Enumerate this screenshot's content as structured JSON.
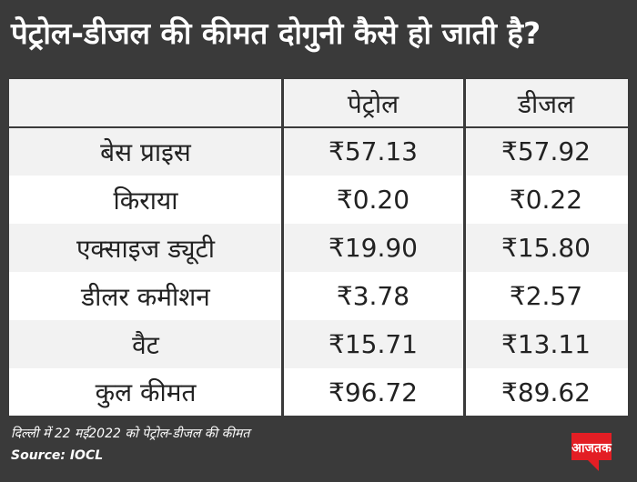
{
  "title": "पेट्रोल-डीजल की कीमत दोगुनी कैसे हो जाती है?",
  "table": {
    "headers": [
      "",
      "पेट्रोल",
      "डीजल"
    ],
    "rows": [
      {
        "label": "बेस प्राइस",
        "petrol": "₹57.13",
        "diesel": "₹57.92"
      },
      {
        "label": "किराया",
        "petrol": "₹0.20",
        "diesel": "₹0.22"
      },
      {
        "label": "एक्साइज ड्यूटी",
        "petrol": "₹19.90",
        "diesel": "₹15.80"
      },
      {
        "label": "डीलर कमीशन",
        "petrol": "₹3.78",
        "diesel": "₹2.57"
      },
      {
        "label": "वैट",
        "petrol": "₹15.71",
        "diesel": "₹13.11"
      },
      {
        "label": "कुल कीमत",
        "petrol": "₹96.72",
        "diesel": "₹89.62"
      }
    ]
  },
  "footnote": "दिल्ली में 22 मई2022 को पेट्रोल-डीजल की कीमत",
  "source": "Source: IOCL",
  "logo": {
    "text": "आजतक",
    "color": "#e31e24"
  }
}
